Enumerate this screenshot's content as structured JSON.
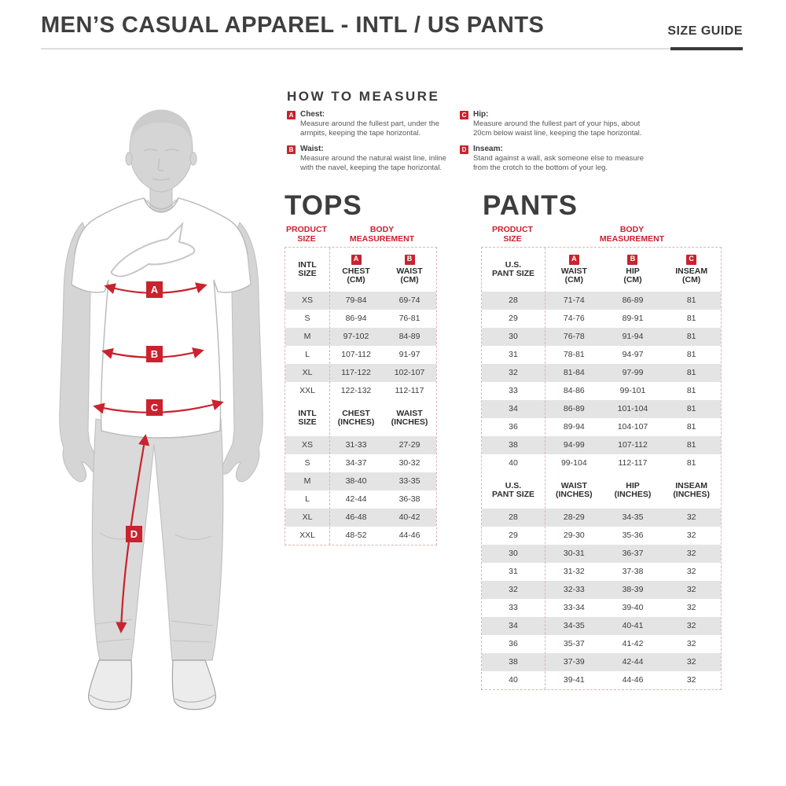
{
  "header": {
    "title": "MEN’S CASUAL APPAREL - INTL / US PANTS",
    "size_guide_label": "SIZE GUIDE"
  },
  "colors": {
    "accent_red": "#c8232e",
    "text_dark": "#3a3a3a",
    "stripe_gray": "#e4e4e4"
  },
  "how_to_measure": {
    "title": "HOW TO MEASURE",
    "items": [
      {
        "key": "A",
        "label": "Chest:",
        "text": "Measure around the fullest part, under the armpits, keeping the tape horizontal."
      },
      {
        "key": "B",
        "label": "Waist:",
        "text": "Measure around the natural waist line, inline with the navel, keeping the tape horizontal."
      },
      {
        "key": "C",
        "label": "Hip:",
        "text": "Measure around the fullest part of your hips, about 20cm below waist line, keeping the tape horizontal."
      },
      {
        "key": "D",
        "label": "Inseam:",
        "text": "Stand against a wall, ask someone else to measure from the crotch to the bottom of your leg."
      }
    ]
  },
  "figure": {
    "markers": {
      "a": "A",
      "b": "B",
      "c": "C",
      "d": "D"
    }
  },
  "tops": {
    "heading": "TOPS",
    "product_size_label": "PRODUCT\nSIZE",
    "body_measurement_label": "BODY\nMEASUREMENT",
    "cm": {
      "size_header": "INTL\nSIZE",
      "columns": [
        {
          "badge": "A",
          "label": "CHEST\n(CM)"
        },
        {
          "badge": "B",
          "label": "WAIST\n(CM)"
        }
      ],
      "rows": [
        [
          "XS",
          "79-84",
          "69-74"
        ],
        [
          "S",
          "86-94",
          "76-81"
        ],
        [
          "M",
          "97-102",
          "84-89"
        ],
        [
          "L",
          "107-112",
          "91-97"
        ],
        [
          "XL",
          "117-122",
          "102-107"
        ],
        [
          "XXL",
          "122-132",
          "112-117"
        ]
      ]
    },
    "inches": {
      "size_header": "INTL\nSIZE",
      "columns": [
        "CHEST\n(INCHES)",
        "WAIST\n(INCHES)"
      ],
      "rows": [
        [
          "XS",
          "31-33",
          "27-29"
        ],
        [
          "S",
          "34-37",
          "30-32"
        ],
        [
          "M",
          "38-40",
          "33-35"
        ],
        [
          "L",
          "42-44",
          "36-38"
        ],
        [
          "XL",
          "46-48",
          "40-42"
        ],
        [
          "XXL",
          "48-52",
          "44-46"
        ]
      ]
    }
  },
  "pants": {
    "heading": "PANTS",
    "product_size_label": "PRODUCT\nSIZE",
    "body_measurement_label": "BODY\nMEASUREMENT",
    "cm": {
      "size_header": "U.S.\nPANT SIZE",
      "columns": [
        {
          "badge": "A",
          "label": "WAIST\n(CM)"
        },
        {
          "badge": "B",
          "label": "HIP\n(CM)"
        },
        {
          "badge": "C",
          "label": "INSEAM\n(CM)"
        }
      ],
      "rows": [
        [
          "28",
          "71-74",
          "86-89",
          "81"
        ],
        [
          "29",
          "74-76",
          "89-91",
          "81"
        ],
        [
          "30",
          "76-78",
          "91-94",
          "81"
        ],
        [
          "31",
          "78-81",
          "94-97",
          "81"
        ],
        [
          "32",
          "81-84",
          "97-99",
          "81"
        ],
        [
          "33",
          "84-86",
          "99-101",
          "81"
        ],
        [
          "34",
          "86-89",
          "101-104",
          "81"
        ],
        [
          "36",
          "89-94",
          "104-107",
          "81"
        ],
        [
          "38",
          "94-99",
          "107-112",
          "81"
        ],
        [
          "40",
          "99-104",
          "112-117",
          "81"
        ]
      ]
    },
    "inches": {
      "size_header": "U.S.\nPANT SIZE",
      "columns": [
        "WAIST\n(INCHES)",
        "HIP\n(INCHES)",
        "INSEAM\n(INCHES)"
      ],
      "rows": [
        [
          "28",
          "28-29",
          "34-35",
          "32"
        ],
        [
          "29",
          "29-30",
          "35-36",
          "32"
        ],
        [
          "30",
          "30-31",
          "36-37",
          "32"
        ],
        [
          "31",
          "31-32",
          "37-38",
          "32"
        ],
        [
          "32",
          "32-33",
          "38-39",
          "32"
        ],
        [
          "33",
          "33-34",
          "39-40",
          "32"
        ],
        [
          "34",
          "34-35",
          "40-41",
          "32"
        ],
        [
          "36",
          "35-37",
          "41-42",
          "32"
        ],
        [
          "38",
          "37-39",
          "42-44",
          "32"
        ],
        [
          "40",
          "39-41",
          "44-46",
          "32"
        ]
      ]
    }
  }
}
